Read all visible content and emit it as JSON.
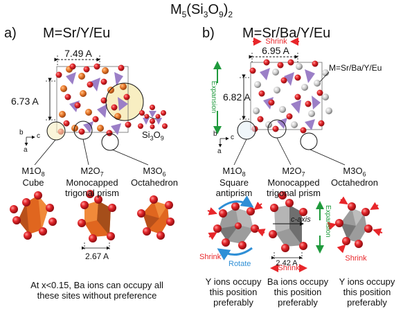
{
  "title": {
    "main": "M",
    "sub1": "5",
    "mid": "(Si",
    "sub2": "3",
    "o": "O",
    "sub3": "9",
    "close": ")",
    "sub4": "2"
  },
  "panel_a": {
    "label": "a)",
    "heading": "M=Sr/Y/Eu",
    "dim_top": "7.49 A",
    "dim_left": "6.73 A",
    "si3o9": {
      "base": "Si",
      "s1": "3",
      "o": "O",
      "s2": "9"
    },
    "axes": {
      "b": "b",
      "c": "c",
      "a": "a"
    },
    "sites": [
      {
        "base": "M1O",
        "sub": "8",
        "shape": "Cube"
      },
      {
        "base": "M2O",
        "sub": "7",
        "shape": "Monocapped\ntrigonal prism"
      },
      {
        "base": "M3O",
        "sub": "6",
        "shape": "Octahedron"
      }
    ],
    "bond_dim": "2.67 A",
    "note": "At x<0.15, Ba ions can occupy all\nthese sites without preference"
  },
  "panel_b": {
    "label": "b)",
    "heading": "M=Sr/Ba/Y/Eu",
    "shrink_top": "Shrink",
    "dim_top": "6.95 A",
    "cell_label": "M=Sr/Ba/Y/Eu",
    "expansion_left": "Expansion",
    "dim_left": "6.82 A",
    "axes": {
      "b": "b",
      "c": "c",
      "a": "a"
    },
    "sites": [
      {
        "base": "M1O",
        "sub": "8",
        "shape": "Square\nantiprism"
      },
      {
        "base": "M2O",
        "sub": "7",
        "shape": "Monocapped\ntrigonal prism"
      },
      {
        "base": "M3O",
        "sub": "6",
        "shape": "Octahedron"
      }
    ],
    "poly1": {
      "shrink": "Shrink",
      "rotate": "Rotate"
    },
    "poly2": {
      "caxis": "c-axis",
      "bond_dim": "2.42 A",
      "shrink": "Shrink",
      "expansion": "Expansion"
    },
    "poly3": {
      "shrink": "Shrink"
    },
    "notes": [
      "Y ions occupy\nthis position\npreferably",
      "Ba ions occupy\nthis position\npreferably",
      "Y ions occupy\nthis position\npreferably"
    ]
  },
  "colors": {
    "red": "#e8262a",
    "orange": "#e8782a",
    "purple": "#9b7fc7",
    "blue": "#2f8fd6",
    "green": "#1f9a3c",
    "gray": "#8e8e8e",
    "yellow_hl": "#f8eec2"
  }
}
